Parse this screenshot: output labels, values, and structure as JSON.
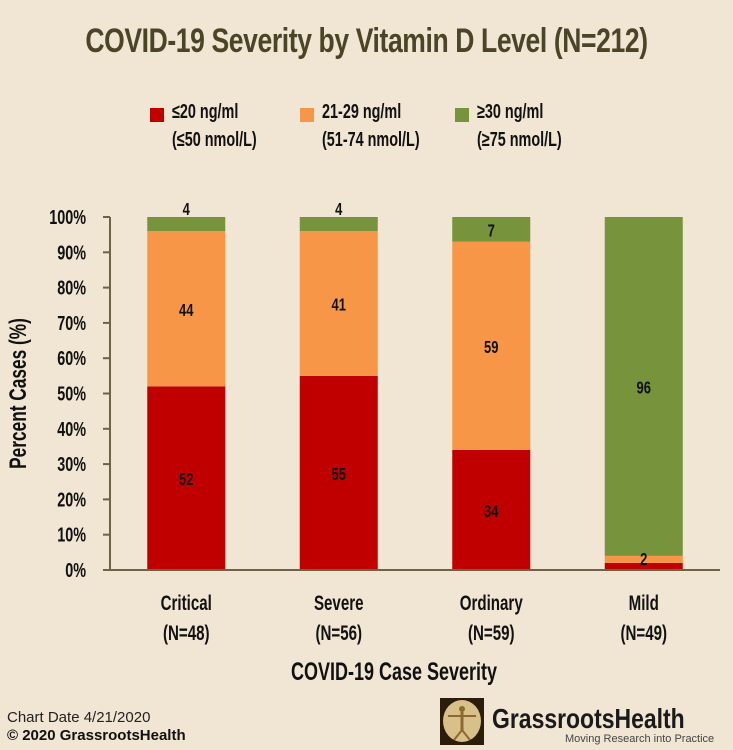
{
  "chart_data": {
    "type": "bar",
    "stacked": true,
    "normalized": true,
    "title": "COVID-19 Severity by Vitamin D Level (N=212)",
    "xlabel": "COVID-19 Case Severity",
    "ylabel": "Percent Cases (%)",
    "ylim": [
      0,
      100
    ],
    "yticks": [
      "0%",
      "10%",
      "20%",
      "30%",
      "40%",
      "50%",
      "60%",
      "70%",
      "80%",
      "90%",
      "100%"
    ],
    "categories": [
      "Critical",
      "Severe",
      "Ordinary",
      "Mild"
    ],
    "category_n": [
      "(N=48)",
      "(N=56)",
      "(N=59)",
      "(N=49)"
    ],
    "legend_position": "top",
    "grid": false,
    "series": [
      {
        "name": "≤20 ng/ml (≤50 nmol/L)",
        "label_line1": "≤20 ng/ml",
        "label_line2": "(≤50 nmol/L)",
        "color": "#c00000",
        "values": [
          52,
          55,
          34,
          2
        ],
        "labels": [
          "52",
          "55",
          "34",
          ""
        ]
      },
      {
        "name": "21-29 ng/ml (51-74 nmol/L)",
        "label_line1": "21-29 ng/ml",
        "label_line2": "(51-74 nmol/L)",
        "color": "#f79646",
        "values": [
          44,
          41,
          59,
          2
        ],
        "labels": [
          "44",
          "41",
          "59",
          "2"
        ]
      },
      {
        "name": "≥30 ng/ml (≥75 nmol/L)",
        "label_line1": "≥30 ng/ml",
        "label_line2": "(≥75 nmol/L)",
        "color": "#77933c",
        "values": [
          4,
          4,
          7,
          96
        ],
        "labels": [
          "4",
          "4",
          "7",
          "96"
        ]
      }
    ]
  },
  "footer": {
    "chart_date": "Chart Date 4/21/2020",
    "copyright": "© 2020 GrassrootsHealth"
  },
  "logo": {
    "name": "GrassrootsHealth",
    "tagline": "Moving Research into Practice"
  },
  "colors": {
    "background": "#f1e5d3",
    "title": "#4a4527",
    "axis": "#6b6446"
  }
}
